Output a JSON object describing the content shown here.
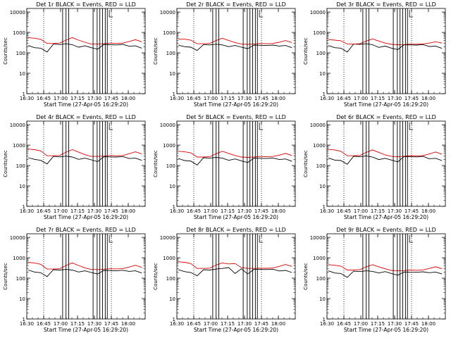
{
  "colors": {
    "events": "#000000",
    "lld": "#dd0000",
    "axis": "#000000",
    "background": "#ffffff"
  },
  "chart_data": [
    {
      "type": "line",
      "title": "Det 1r BLACK = Events, RED = LLD",
      "xlabel": "Start Time (27-Apr-05 16:29:20)",
      "ylabel": "Counts/sec",
      "x_tick_labels": [
        "16:30",
        "16:45",
        "17:00",
        "17:15",
        "17:30",
        "17:45",
        "18:00"
      ],
      "y_tick_labels": [
        "1",
        "10",
        "100",
        "1000",
        "10000"
      ],
      "ylim": [
        1,
        15000
      ],
      "y_scale": "log",
      "series": [
        {
          "name": "Events",
          "values": [
            230,
            180,
            170,
            110,
            270,
            255,
            280,
            250,
            190,
            220,
            180,
            150,
            260,
            250,
            245,
            260,
            210,
            220,
            170
          ]
        },
        {
          "name": "LLD",
          "values": [
            560,
            520,
            460,
            290,
            290,
            300,
            420,
            560,
            420,
            330,
            270,
            270,
            280,
            300,
            290,
            300,
            360,
            440,
            350
          ]
        }
      ]
    },
    {
      "type": "line",
      "title": "Det 2r BLACK = Events, RED = LLD",
      "xlabel": "Start Time (27-Apr-05 16:29:20)",
      "ylabel": "Counts/sec",
      "x_tick_labels": [
        "16:30",
        "16:45",
        "17:00",
        "17:15",
        "17:30",
        "17:45",
        "18:00"
      ],
      "y_tick_labels": [
        "1",
        "10",
        "100",
        "1000",
        "10000"
      ],
      "ylim": [
        1,
        15000
      ],
      "y_scale": "log",
      "series": [
        {
          "name": "Events",
          "values": [
            240,
            200,
            190,
            130,
            255,
            245,
            265,
            245,
            200,
            230,
            190,
            160,
            240,
            235,
            230,
            240,
            215,
            230,
            180
          ]
        },
        {
          "name": "LLD",
          "values": [
            480,
            470,
            420,
            280,
            280,
            290,
            400,
            520,
            400,
            320,
            270,
            260,
            270,
            290,
            280,
            290,
            330,
            400,
            320
          ]
        }
      ]
    },
    {
      "type": "line",
      "title": "Det 3r BLACK = Events, RED = LLD",
      "xlabel": "Start Time (27-Apr-05 16:29:20)",
      "ylabel": "Counts/sec",
      "x_tick_labels": [
        "16:30",
        "16:45",
        "17:00",
        "17:15",
        "17:30",
        "17:45",
        "18:00"
      ],
      "y_tick_labels": [
        "1",
        "10",
        "100",
        "1000",
        "10000"
      ],
      "ylim": [
        1,
        15000
      ],
      "y_scale": "log",
      "series": [
        {
          "name": "Events",
          "values": [
            230,
            180,
            170,
            110,
            270,
            260,
            280,
            250,
            185,
            215,
            170,
            145,
            250,
            245,
            240,
            255,
            205,
            215,
            165
          ]
        },
        {
          "name": "LLD",
          "values": [
            450,
            420,
            390,
            270,
            270,
            280,
            380,
            480,
            380,
            300,
            260,
            250,
            255,
            270,
            265,
            275,
            300,
            350,
            300
          ]
        }
      ]
    },
    {
      "type": "line",
      "title": "Det 4r BLACK = Events, RED = LLD",
      "xlabel": "Start Time (27-Apr-05 16:29:20)",
      "ylabel": "Counts/sec",
      "x_tick_labels": [
        "16:30",
        "16:45",
        "17:00",
        "17:15",
        "17:30",
        "17:45",
        "18:00"
      ],
      "y_tick_labels": [
        "1",
        "10",
        "100",
        "1000",
        "10000"
      ],
      "ylim": [
        1,
        15000
      ],
      "y_scale": "log",
      "series": [
        {
          "name": "Events",
          "values": [
            240,
            200,
            180,
            120,
            280,
            265,
            290,
            260,
            200,
            230,
            190,
            155,
            270,
            265,
            260,
            275,
            220,
            230,
            180
          ]
        },
        {
          "name": "LLD",
          "values": [
            640,
            600,
            520,
            300,
            300,
            310,
            450,
            600,
            450,
            340,
            280,
            280,
            290,
            310,
            300,
            310,
            380,
            470,
            370
          ]
        }
      ]
    },
    {
      "type": "line",
      "title": "Det 5r BLACK = Events, RED = LLD",
      "xlabel": "Start Time (27-Apr-05 16:29:20)",
      "ylabel": "Counts/sec",
      "x_tick_labels": [
        "16:30",
        "16:45",
        "17:00",
        "17:15",
        "17:30",
        "17:45",
        "18:00"
      ],
      "y_tick_labels": [
        "1",
        "10",
        "100",
        "1000",
        "10000"
      ],
      "ylim": [
        1,
        15000
      ],
      "y_scale": "log",
      "series": [
        {
          "name": "Events",
          "values": [
            220,
            175,
            165,
            105,
            240,
            230,
            250,
            230,
            180,
            210,
            170,
            140,
            230,
            225,
            220,
            235,
            195,
            210,
            160
          ]
        },
        {
          "name": "LLD",
          "values": [
            500,
            470,
            420,
            260,
            260,
            270,
            380,
            500,
            390,
            310,
            260,
            250,
            260,
            280,
            270,
            280,
            320,
            390,
            310
          ]
        }
      ]
    },
    {
      "type": "line",
      "title": "Det 6r BLACK = Events, RED = LLD",
      "xlabel": "Start Time (27-Apr-05 16:29:20)",
      "ylabel": "Counts/sec",
      "x_tick_labels": [
        "16:30",
        "16:45",
        "17:00",
        "17:15",
        "17:30",
        "17:45",
        "18:00"
      ],
      "y_tick_labels": [
        "1",
        "10",
        "100",
        "1000",
        "10000"
      ],
      "ylim": [
        1,
        15000
      ],
      "y_scale": "log",
      "series": [
        {
          "name": "Events",
          "values": [
            235,
            185,
            175,
            115,
            285,
            270,
            295,
            260,
            195,
            225,
            185,
            150,
            275,
            270,
            265,
            280,
            215,
            225,
            175
          ]
        },
        {
          "name": "LLD",
          "values": [
            620,
            580,
            500,
            300,
            300,
            310,
            440,
            580,
            440,
            330,
            280,
            270,
            285,
            305,
            295,
            305,
            370,
            460,
            360
          ]
        }
      ]
    },
    {
      "type": "line",
      "title": "Det 7r BLACK = Events, RED = LLD",
      "xlabel": "Start Time (27-Apr-05 16:29:20)",
      "ylabel": "Counts/sec",
      "x_tick_labels": [
        "16:30",
        "16:45",
        "17:00",
        "17:15",
        "17:30",
        "17:45",
        "18:00"
      ],
      "y_tick_labels": [
        "1",
        "10",
        "100",
        "1000",
        "10000"
      ],
      "ylim": [
        1,
        15000
      ],
      "y_scale": "log",
      "series": [
        {
          "name": "Events",
          "values": [
            250,
            200,
            185,
            120,
            260,
            250,
            270,
            250,
            200,
            230,
            190,
            160,
            240,
            235,
            230,
            245,
            215,
            230,
            180
          ]
        },
        {
          "name": "LLD",
          "values": [
            600,
            560,
            480,
            280,
            280,
            290,
            420,
            560,
            420,
            320,
            270,
            265,
            275,
            290,
            285,
            295,
            350,
            430,
            340
          ]
        }
      ]
    },
    {
      "type": "line",
      "title": "Det 8r BLACK = Events, RED = LLD",
      "xlabel": "Start Time (27-Apr-05 16:29:20)",
      "ylabel": "Counts/sec",
      "x_tick_labels": [
        "16:30",
        "16:45",
        "17:00",
        "17:15",
        "17:30",
        "17:45",
        "18:00"
      ],
      "y_tick_labels": [
        "1",
        "10",
        "100",
        "1000",
        "10000"
      ],
      "ylim": [
        1,
        15000
      ],
      "y_scale": "log",
      "series": [
        {
          "name": "Events",
          "values": [
            260,
            210,
            190,
            130,
            260,
            250,
            280,
            300,
            330,
            170,
            290,
            160,
            270,
            270,
            265,
            275,
            225,
            240,
            190
          ]
        },
        {
          "name": "LLD",
          "values": [
            640,
            600,
            520,
            300,
            300,
            310,
            440,
            560,
            500,
            520,
            330,
            300,
            300,
            310,
            305,
            315,
            380,
            470,
            380
          ]
        }
      ]
    },
    {
      "type": "line",
      "title": "Det 9r BLACK = Events, RED = LLD",
      "xlabel": "Start Time (27-Apr-05 16:29:20)",
      "ylabel": "Counts/sec",
      "x_tick_labels": [
        "16:30",
        "16:45",
        "17:00",
        "17:15",
        "17:30",
        "17:45",
        "18:00"
      ],
      "y_tick_labels": [
        "1",
        "10",
        "100",
        "1000",
        "10000"
      ],
      "ylim": [
        1,
        15000
      ],
      "y_scale": "log",
      "series": [
        {
          "name": "Events",
          "values": [
            230,
            180,
            170,
            110,
            220,
            210,
            230,
            215,
            180,
            210,
            170,
            140,
            200,
            195,
            195,
            205,
            185,
            200,
            160
          ]
        },
        {
          "name": "LLD",
          "values": [
            460,
            430,
            390,
            250,
            250,
            260,
            360,
            460,
            360,
            290,
            240,
            230,
            235,
            250,
            245,
            255,
            300,
            360,
            290
          ]
        }
      ]
    }
  ]
}
